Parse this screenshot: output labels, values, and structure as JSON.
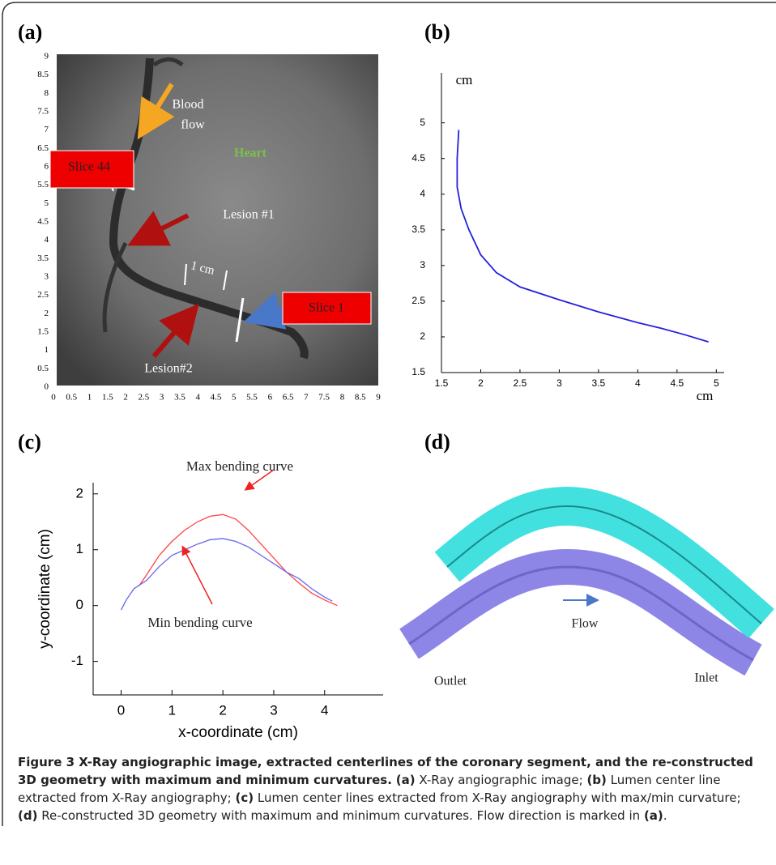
{
  "panel_a": {
    "title": "(a)",
    "xticks": [
      0,
      0.5,
      1,
      1.5,
      2,
      2.5,
      3,
      3.5,
      4,
      4.5,
      5,
      5.5,
      6,
      6.5,
      7,
      7.5,
      8,
      8.5,
      9
    ],
    "yticks": [
      0,
      0.5,
      1,
      1.5,
      2,
      2.5,
      3,
      3.5,
      4,
      4.5,
      5,
      5.5,
      6,
      6.5,
      7,
      7.5,
      8,
      8.5,
      9
    ],
    "labels": {
      "blood": "Blood",
      "flow": "flow",
      "heart": "Heart",
      "slice44": "Slice 44",
      "lesion1": "Lesion #1",
      "one_cm": "1 cm",
      "slice1": "Slice 1",
      "lesion2": "Lesion#2"
    }
  },
  "chart_data": [
    {
      "type": "line",
      "title": "(b)",
      "x_label": "cm",
      "y_label": "cm",
      "xlim": [
        1.5,
        5.1
      ],
      "ylim": [
        1.5,
        5.7
      ],
      "xticks": [
        1.5,
        2,
        2.5,
        3,
        3.5,
        4,
        4.5,
        5
      ],
      "yticks": [
        1.5,
        2,
        2.5,
        3,
        3.5,
        4,
        4.5,
        5
      ],
      "series": [
        {
          "color": "#2222dd",
          "x": [
            1.72,
            1.7,
            1.7,
            1.75,
            1.85,
            2.0,
            2.2,
            2.5,
            3.0,
            3.5,
            4.0,
            4.3,
            4.6,
            4.9
          ],
          "values": [
            4.9,
            4.5,
            4.1,
            3.8,
            3.5,
            3.15,
            2.9,
            2.7,
            2.52,
            2.35,
            2.2,
            2.12,
            2.03,
            1.93
          ]
        }
      ]
    },
    {
      "type": "line",
      "title": "(c)",
      "x_label": "x-coordinate (cm)",
      "y_label": "y-coordinate (cm)",
      "xlim": [
        -0.55,
        5.15
      ],
      "ylim": [
        -1.6,
        2.2
      ],
      "xticks": [
        0,
        1,
        2,
        3,
        4
      ],
      "yticks": [
        -1,
        0,
        1,
        2
      ],
      "series": [
        {
          "name": "Max bending curve",
          "color": "#ff4444",
          "x": [
            0.35,
            0.5,
            0.75,
            1,
            1.25,
            1.5,
            1.75,
            2,
            2.25,
            2.5,
            2.75,
            3,
            3.25,
            3.5,
            3.75,
            4,
            4.25
          ],
          "values": [
            0.35,
            0.55,
            0.9,
            1.15,
            1.35,
            1.5,
            1.6,
            1.63,
            1.55,
            1.35,
            1.1,
            0.85,
            0.6,
            0.4,
            0.22,
            0.1,
            0.0
          ]
        },
        {
          "name": "Min bending curve",
          "color": "#6666ee",
          "x": [
            0,
            0.1,
            0.25,
            0.5,
            0.75,
            1,
            1.25,
            1.5,
            1.75,
            2,
            2.25,
            2.5,
            2.75,
            3,
            3.25,
            3.5,
            3.75,
            4,
            4.15
          ],
          "values": [
            -0.08,
            0.1,
            0.3,
            0.45,
            0.7,
            0.9,
            1.0,
            1.1,
            1.18,
            1.2,
            1.15,
            1.05,
            0.9,
            0.75,
            0.6,
            0.48,
            0.3,
            0.15,
            0.08
          ]
        }
      ]
    }
  ],
  "panel_d": {
    "title": "(d)",
    "labels": {
      "flow": "Flow",
      "outlet": "Outlet",
      "inlet": "Inlet"
    }
  },
  "caption": {
    "heading": "Figure 3 X-Ray angiographic image, extracted centerlines of the coronary segment, and the re-constructed 3D geometry with maximum and minimum curvatures.",
    "parts": [
      {
        "tag": "(a)",
        "text": "X-Ray angiographic image;"
      },
      {
        "tag": "(b)",
        "text": "Lumen center line extracted from X-Ray angiography;"
      },
      {
        "tag": "(c)",
        "text": "Lumen center lines extracted from X-Ray angiography with max/min curvature;"
      },
      {
        "tag": "(d)",
        "text": "Re-constructed 3D geometry with maximum and minimum curvatures. Flow direction is marked in"
      }
    ],
    "ref": "(a)",
    "end": "."
  }
}
